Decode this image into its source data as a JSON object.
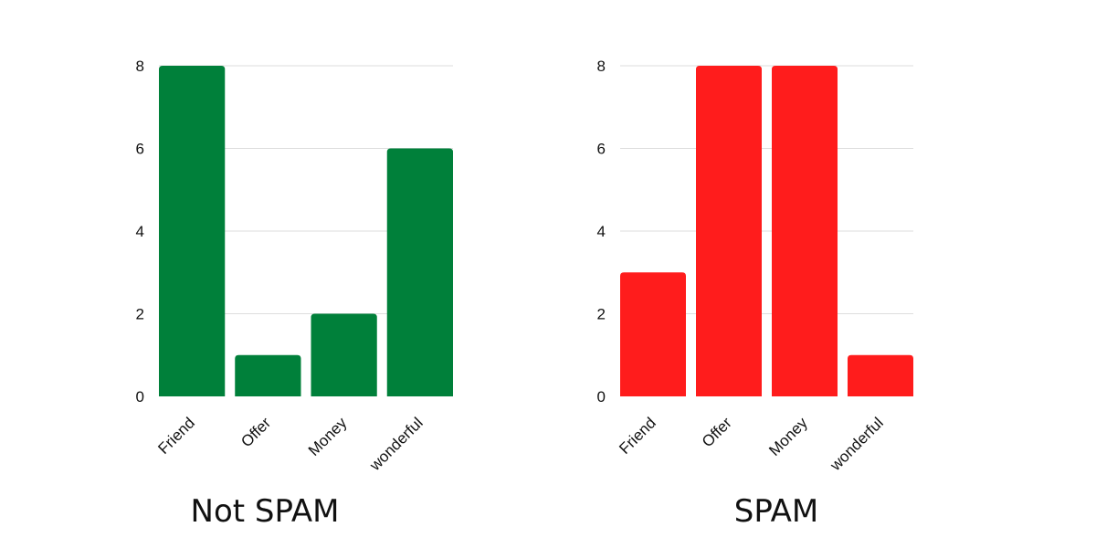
{
  "colors": {
    "not_spam": "#00803a",
    "spam": "#ff1c1c",
    "grid": "#dddddd",
    "axis_text": "#111111"
  },
  "chart_data": [
    {
      "type": "bar",
      "title": "Not SPAM",
      "categories": [
        "Friend",
        "Offer",
        "Money",
        "wonderful"
      ],
      "values": [
        8,
        1,
        2,
        6
      ],
      "ylim": [
        0,
        8
      ],
      "yticks": [
        0,
        2,
        4,
        6,
        8
      ],
      "grid": true,
      "color": "#00803a"
    },
    {
      "type": "bar",
      "title": "SPAM",
      "categories": [
        "Friend",
        "Offer",
        "Money",
        "wonderful"
      ],
      "values": [
        3,
        8,
        8,
        1
      ],
      "ylim": [
        0,
        8
      ],
      "yticks": [
        0,
        2,
        4,
        6,
        8
      ],
      "grid": true,
      "color": "#ff1c1c"
    }
  ]
}
